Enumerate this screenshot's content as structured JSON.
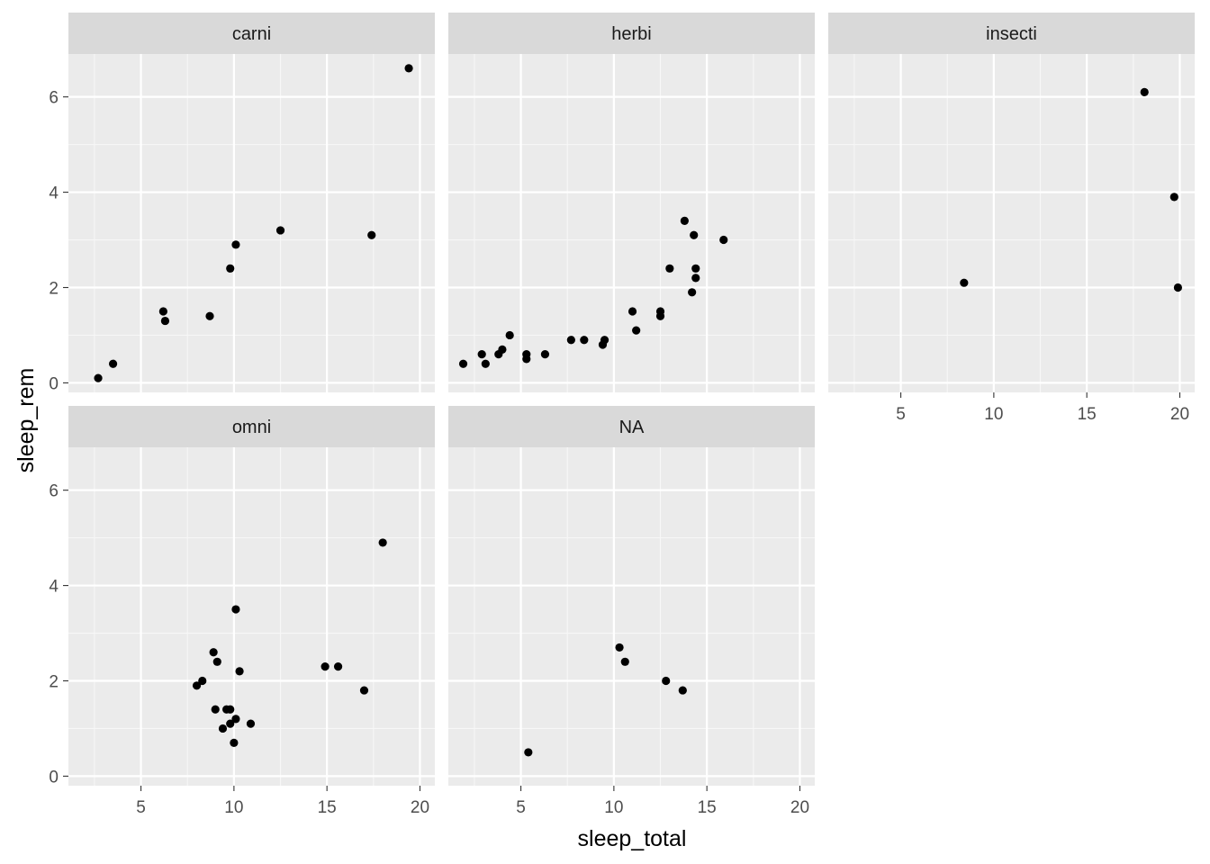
{
  "chart_data": {
    "type": "scatter",
    "facet_layout": {
      "columns": 3,
      "rows": 2
    },
    "xlabel": "sleep_total",
    "ylabel": "sleep_rem",
    "xlim": [
      1.1,
      20.8
    ],
    "ylim": [
      -0.2,
      6.9
    ],
    "x_ticks": [
      5,
      10,
      15,
      20
    ],
    "y_ticks": [
      0,
      2,
      4,
      6
    ],
    "x_tick_labels": [
      "5",
      "10",
      "15",
      "20"
    ],
    "y_tick_labels": [
      "0",
      "2",
      "4",
      "6"
    ],
    "grid": true,
    "colors": {
      "panel_background": "#ebebeb",
      "strip_background": "#d9d9d9",
      "grid_major": "#ffffff",
      "grid_minor": "#f7f7f7",
      "point": "#000000",
      "tick_label": "#4d4d4d",
      "axis_tick": "#333333"
    },
    "facets": [
      {
        "label": "carni",
        "points": [
          [
            2.7,
            0.1
          ],
          [
            3.5,
            0.4
          ],
          [
            6.2,
            1.5
          ],
          [
            6.3,
            1.3
          ],
          [
            8.7,
            1.4
          ],
          [
            9.8,
            2.4
          ],
          [
            10.1,
            2.9
          ],
          [
            12.5,
            3.2
          ],
          [
            17.4,
            3.1
          ],
          [
            19.4,
            6.6
          ]
        ]
      },
      {
        "label": "herbi",
        "points": [
          [
            1.9,
            0.4
          ],
          [
            2.9,
            0.6
          ],
          [
            3.1,
            0.4
          ],
          [
            3.8,
            0.6
          ],
          [
            4.0,
            0.7
          ],
          [
            4.4,
            1.0
          ],
          [
            5.3,
            0.6
          ],
          [
            5.3,
            0.5
          ],
          [
            6.3,
            0.6
          ],
          [
            7.7,
            0.9
          ],
          [
            8.4,
            0.9
          ],
          [
            9.4,
            0.8
          ],
          [
            9.5,
            0.9
          ],
          [
            11.0,
            1.5
          ],
          [
            11.2,
            1.1
          ],
          [
            12.5,
            1.5
          ],
          [
            12.5,
            1.4
          ],
          [
            13.0,
            2.4
          ],
          [
            13.8,
            3.4
          ],
          [
            14.2,
            1.9
          ],
          [
            14.3,
            3.1
          ],
          [
            14.4,
            2.4
          ],
          [
            14.4,
            2.2
          ],
          [
            15.9,
            3.0
          ]
        ]
      },
      {
        "label": "insecti",
        "points": [
          [
            8.4,
            2.1
          ],
          [
            18.1,
            6.1
          ],
          [
            19.7,
            3.9
          ],
          [
            19.9,
            2.0
          ]
        ]
      },
      {
        "label": "omni",
        "points": [
          [
            8.0,
            1.9
          ],
          [
            8.3,
            2.0
          ],
          [
            8.9,
            2.6
          ],
          [
            9.0,
            1.4
          ],
          [
            9.1,
            2.4
          ],
          [
            9.4,
            1.0
          ],
          [
            9.6,
            1.4
          ],
          [
            9.8,
            1.4
          ],
          [
            9.8,
            1.1
          ],
          [
            10.0,
            0.7
          ],
          [
            10.1,
            1.2
          ],
          [
            10.1,
            3.5
          ],
          [
            10.3,
            2.2
          ],
          [
            10.9,
            1.1
          ],
          [
            14.9,
            2.3
          ],
          [
            15.6,
            2.3
          ],
          [
            17.0,
            1.8
          ],
          [
            18.0,
            4.9
          ]
        ]
      },
      {
        "label": "NA",
        "points": [
          [
            5.4,
            0.5
          ],
          [
            10.3,
            2.7
          ],
          [
            10.6,
            2.4
          ],
          [
            12.8,
            2.0
          ],
          [
            13.7,
            1.8
          ]
        ]
      }
    ]
  }
}
